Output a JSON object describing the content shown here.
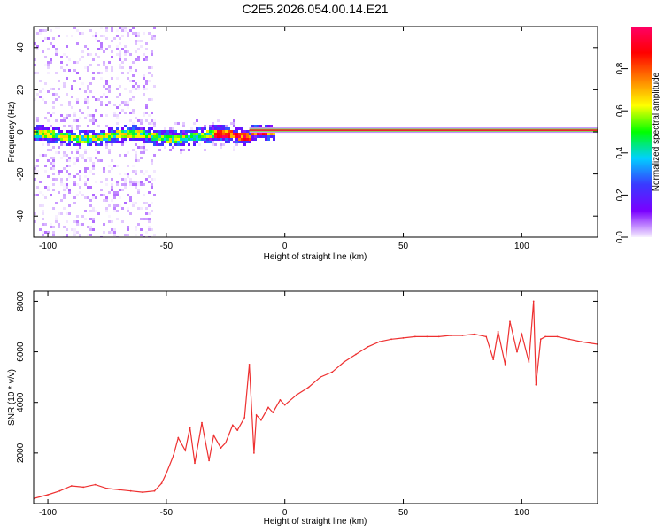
{
  "title": "C2E5.2026.054.00.14.E21",
  "colors": {
    "snr_line": "#ee3030",
    "carrier_line": "#1a1a1a",
    "colorbar_stops": [
      "#f7f0ff",
      "#7a00ff",
      "#3a3aff",
      "#00d0ff",
      "#00ff00",
      "#ffff00",
      "#ff8000",
      "#ff0000",
      "#ff0066"
    ]
  },
  "chart_data": [
    {
      "type": "heatmap",
      "name": "spectrogram",
      "xlabel": "Height of straight line (km)",
      "ylabel": "Frequency (Hz)",
      "xlim": [
        -106,
        132
      ],
      "ylim": [
        -50,
        50
      ],
      "xticks": [
        -100,
        -50,
        0,
        50,
        100
      ],
      "yticks": [
        -40,
        -20,
        0,
        20,
        40
      ],
      "xticklabels": [
        "-100",
        "-50",
        "0",
        "50",
        "100"
      ],
      "yticklabels": [
        "-40",
        "-20",
        "0",
        "20",
        "40"
      ],
      "carrier_line": {
        "x_start": -15,
        "x_end": 132,
        "frequency_hz": 0.8
      },
      "colorbar": {
        "label": "Normalized spectral amplitude",
        "range": [
          0,
          1
        ],
        "ticks": [
          0.0,
          0.2,
          0.4,
          0.6,
          0.8
        ],
        "ticklabels": [
          "0.0",
          "0.2",
          "0.4",
          "0.6",
          "0.8"
        ]
      }
    },
    {
      "type": "line",
      "name": "snr",
      "xlabel": "Height of straight line (km)",
      "ylabel": "SNR (10 * v/v)",
      "xlim": [
        -106,
        132
      ],
      "ylim": [
        0,
        8400
      ],
      "xticks": [
        -100,
        -50,
        0,
        50,
        100
      ],
      "yticks": [
        2000,
        4000,
        6000,
        8000
      ],
      "xticklabels": [
        "-100",
        "-50",
        "0",
        "50",
        "100"
      ],
      "yticklabels": [
        "2000",
        "4000",
        "6000",
        "8000"
      ],
      "series": [
        {
          "name": "SNR",
          "x": [
            -106,
            -100,
            -95,
            -90,
            -85,
            -80,
            -75,
            -70,
            -65,
            -60,
            -55,
            -52,
            -50,
            -47,
            -45,
            -42,
            -40,
            -38,
            -35,
            -32,
            -30,
            -27,
            -25,
            -22,
            -20,
            -17,
            -15,
            -13,
            -12,
            -10,
            -7,
            -5,
            -2,
            0,
            5,
            10,
            15,
            20,
            25,
            30,
            35,
            40,
            45,
            50,
            55,
            60,
            65,
            70,
            75,
            80,
            85,
            88,
            90,
            93,
            95,
            98,
            100,
            103,
            105,
            106,
            108,
            110,
            115,
            120,
            125,
            132
          ],
          "values": [
            200,
            350,
            500,
            700,
            650,
            750,
            600,
            550,
            500,
            450,
            500,
            800,
            1200,
            1900,
            2600,
            2100,
            3000,
            1600,
            3200,
            1700,
            2700,
            2200,
            2400,
            3100,
            2900,
            3400,
            5500,
            2000,
            3500,
            3300,
            3800,
            3600,
            4100,
            3900,
            4300,
            4600,
            5000,
            5200,
            5600,
            5900,
            6200,
            6400,
            6500,
            6550,
            6600,
            6600,
            6600,
            6650,
            6650,
            6700,
            6600,
            5700,
            6800,
            5500,
            7200,
            6000,
            6700,
            5600,
            8000,
            4700,
            6500,
            6600,
            6600,
            6500,
            6400,
            6300
          ]
        }
      ]
    }
  ]
}
